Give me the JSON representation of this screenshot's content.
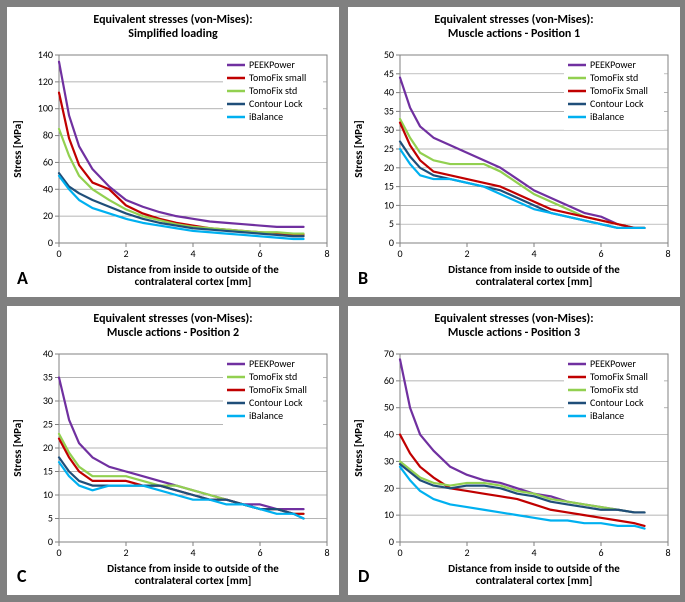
{
  "background_color": "#ffffff",
  "grid_color": "#9c9c9c",
  "axis_color": "#808080",
  "text_color": "#000000",
  "title_fontsize": 12,
  "title_fontweight": "bold",
  "axis_label_fontsize": 11,
  "axis_label_fontweight": "bold",
  "tick_fontsize": 10,
  "legend_fontsize": 10,
  "line_width": 2.2,
  "series_colors": {
    "PEEKPower": "#7030a0",
    "TomoFix small": "#c00000",
    "TomoFix Small": "#c00000",
    "TomoFix std": "#92d050",
    "Contour Lock": "#1f4e79",
    "iBalance": "#00b0f0"
  },
  "panels": {
    "A": {
      "label": "A",
      "title_lines": [
        "Equivalent stresses (von-Mises):",
        "Simplified loading"
      ],
      "xlabel_lines": [
        "Distance from inside to outside of the",
        "contralateral cortex [mm]"
      ],
      "ylabel": "Stress [MPa]",
      "xlim": [
        0,
        8
      ],
      "xtick_step": 2,
      "ylim": [
        0,
        140
      ],
      "ytick_step": 20,
      "legend_order": [
        "PEEKPower",
        "TomoFix small",
        "TomoFix std",
        "Contour Lock",
        "iBalance"
      ],
      "x": [
        0,
        0.3,
        0.6,
        1,
        1.5,
        2,
        2.5,
        3,
        3.5,
        4,
        4.5,
        5,
        5.5,
        6,
        6.5,
        7,
        7.3
      ],
      "series": {
        "PEEKPower": [
          135,
          95,
          72,
          55,
          42,
          32,
          27,
          23,
          20,
          18,
          16,
          15,
          14,
          13,
          12,
          12,
          12
        ],
        "TomoFix small": [
          112,
          78,
          58,
          45,
          40,
          28,
          22,
          18,
          15,
          13,
          11,
          10,
          9,
          8,
          7,
          6,
          6
        ],
        "TomoFix std": [
          85,
          65,
          50,
          40,
          32,
          25,
          20,
          17,
          14,
          12,
          11,
          10,
          9,
          8,
          8,
          7,
          7
        ],
        "Contour Lock": [
          52,
          42,
          37,
          32,
          27,
          22,
          18,
          15,
          13,
          11,
          10,
          9,
          8,
          7,
          6,
          5,
          5
        ],
        "iBalance": [
          50,
          40,
          32,
          26,
          22,
          18,
          15,
          13,
          11,
          9,
          8,
          7,
          6,
          5,
          4,
          3,
          3
        ]
      }
    },
    "B": {
      "label": "B",
      "title_lines": [
        "Equivalent stresses (von-Mises):",
        "Muscle actions - Position 1"
      ],
      "xlabel_lines": [
        "Distance from inside to outside of the",
        "contralateral cortex [mm]"
      ],
      "ylabel": "Stress [MPa]",
      "xlim": [
        0,
        8
      ],
      "xtick_step": 2,
      "ylim": [
        0,
        50
      ],
      "ytick_step": 5,
      "legend_order": [
        "PEEKPower",
        "TomoFix std",
        "TomoFix Small",
        "Contour Lock",
        "iBalance"
      ],
      "x": [
        0,
        0.3,
        0.6,
        1,
        1.5,
        2,
        2.5,
        3,
        3.5,
        4,
        4.5,
        5,
        5.5,
        6,
        6.5,
        7,
        7.3
      ],
      "series": {
        "PEEKPower": [
          44,
          36,
          31,
          28,
          26,
          24,
          22,
          20,
          17,
          14,
          12,
          10,
          8,
          7,
          5,
          4,
          4
        ],
        "TomoFix std": [
          33,
          28,
          24,
          22,
          21,
          21,
          21,
          19,
          16,
          13,
          11,
          9,
          7,
          6,
          5,
          4,
          4
        ],
        "TomoFix Small": [
          32,
          26,
          22,
          19,
          18,
          17,
          16,
          15,
          13,
          11,
          9,
          8,
          7,
          6,
          5,
          4,
          4
        ],
        "Contour Lock": [
          27,
          23,
          20,
          18,
          17,
          16,
          15,
          14,
          12,
          10,
          8,
          7,
          6,
          5,
          4,
          4,
          4
        ],
        "iBalance": [
          25,
          21,
          18,
          17,
          17,
          16,
          15,
          13,
          11,
          9,
          8,
          7,
          6,
          5,
          4,
          4,
          4
        ]
      }
    },
    "C": {
      "label": "C",
      "title_lines": [
        "Equivalent stresses (von-Mises):",
        "Muscle actions - Position 2"
      ],
      "xlabel_lines": [
        "Distance from inside to outside of the",
        "contralateral cortex [mm]"
      ],
      "ylabel": "Stress [MPa]",
      "xlim": [
        0,
        8
      ],
      "xtick_step": 2,
      "ylim": [
        0,
        40
      ],
      "ytick_step": 5,
      "legend_order": [
        "PEEKPower",
        "TomoFix std",
        "TomoFix Small",
        "Contour Lock",
        "iBalance"
      ],
      "x": [
        0,
        0.3,
        0.6,
        1,
        1.5,
        2,
        2.5,
        3,
        3.5,
        4,
        4.5,
        5,
        5.5,
        6,
        6.5,
        7,
        7.3
      ],
      "series": {
        "PEEKPower": [
          35,
          26,
          21,
          18,
          16,
          15,
          14,
          13,
          12,
          11,
          10,
          9,
          8,
          8,
          7,
          7,
          7
        ],
        "TomoFix std": [
          23,
          19,
          16,
          14,
          14,
          14,
          13,
          12,
          12,
          11,
          10,
          9,
          8,
          7,
          7,
          6,
          6
        ],
        "TomoFix Small": [
          22,
          18,
          15,
          13,
          13,
          13,
          12,
          12,
          11,
          10,
          9,
          9,
          8,
          7,
          7,
          6,
          6
        ],
        "Contour Lock": [
          18,
          15,
          13,
          12,
          12,
          12,
          12,
          12,
          11,
          10,
          9,
          9,
          8,
          7,
          7,
          6,
          5
        ],
        "iBalance": [
          17,
          14,
          12,
          11,
          12,
          12,
          12,
          11,
          10,
          9,
          9,
          8,
          8,
          7,
          6,
          6,
          5
        ]
      }
    },
    "D": {
      "label": "D",
      "title_lines": [
        "Equivalent stresses (von-Mises):",
        "Muscle actions - Position 3"
      ],
      "xlabel_lines": [
        "Distance from inside to outside of the",
        "contralateral cortex [mm]"
      ],
      "ylabel": "Stress [MPa]",
      "xlim": [
        0,
        8
      ],
      "xtick_step": 2,
      "ylim": [
        0,
        70
      ],
      "ytick_step": 10,
      "legend_order": [
        "PEEKPower",
        "TomoFix Small",
        "TomoFix std",
        "Contour Lock",
        "iBalance"
      ],
      "x": [
        0,
        0.3,
        0.6,
        1,
        1.5,
        2,
        2.5,
        3,
        3.5,
        4,
        4.5,
        5,
        5.5,
        6,
        6.5,
        7,
        7.3
      ],
      "series": {
        "PEEKPower": [
          68,
          50,
          40,
          34,
          28,
          25,
          23,
          22,
          20,
          18,
          17,
          15,
          14,
          13,
          12,
          11,
          11
        ],
        "TomoFix Small": [
          40,
          33,
          28,
          24,
          20,
          19,
          18,
          17,
          16,
          14,
          12,
          11,
          10,
          9,
          8,
          7,
          6
        ],
        "TomoFix std": [
          30,
          27,
          24,
          22,
          21,
          22,
          22,
          21,
          19,
          18,
          16,
          15,
          14,
          13,
          12,
          11,
          11
        ],
        "Contour Lock": [
          29,
          26,
          23,
          21,
          20,
          21,
          21,
          20,
          18,
          17,
          15,
          14,
          13,
          12,
          12,
          11,
          11
        ],
        "iBalance": [
          28,
          23,
          19,
          16,
          14,
          13,
          12,
          11,
          10,
          9,
          8,
          8,
          7,
          7,
          6,
          6,
          5
        ]
      }
    }
  }
}
